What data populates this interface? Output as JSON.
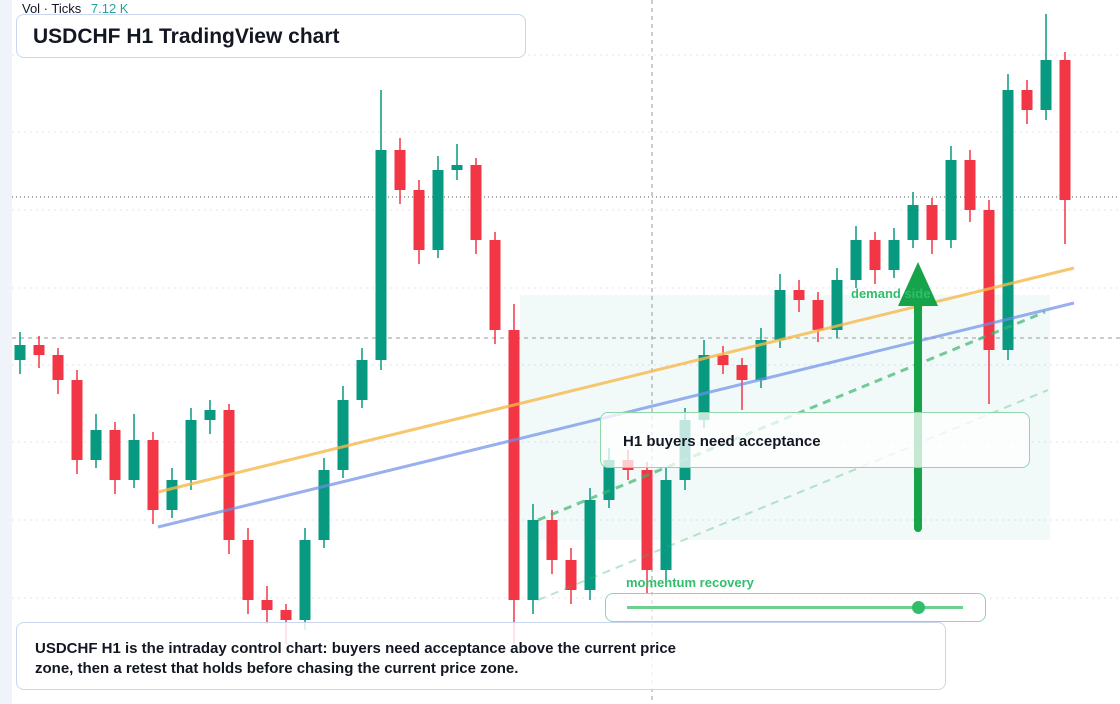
{
  "header": {
    "vol_label": "Vol · Ticks",
    "vol_value": "7.12 K"
  },
  "chart_data": {
    "type": "candlestick",
    "title": "USDCHF H1 TradingView chart",
    "up_color": "#089981",
    "down_color": "#f23645",
    "ylim": [
      0,
      704
    ],
    "open": [
      344,
      359,
      349,
      324,
      244,
      274,
      224,
      264,
      194,
      224,
      284,
      294,
      164,
      104,
      94,
      84,
      164,
      234,
      304,
      344,
      554,
      514,
      454,
      534,
      539,
      464,
      374,
      104,
      184,
      144,
      114,
      204,
      244,
      234,
      134,
      224,
      284,
      349,
      339,
      324,
      364,
      414,
      404,
      374,
      424,
      464,
      434,
      464,
      499,
      464,
      544,
      494,
      354,
      614,
      594,
      644
    ],
    "high": [
      372,
      368,
      356,
      334,
      290,
      282,
      290,
      272,
      236,
      296,
      304,
      300,
      176,
      118,
      100,
      176,
      246,
      318,
      356,
      614,
      566,
      524,
      548,
      560,
      546,
      472,
      400,
      200,
      194,
      156,
      216,
      256,
      254,
      242,
      236,
      296,
      364,
      358,
      346,
      376,
      430,
      424,
      412,
      436,
      478,
      472,
      476,
      512,
      506,
      558,
      554,
      504,
      630,
      624,
      690,
      652
    ],
    "low": [
      330,
      336,
      310,
      230,
      236,
      210,
      216,
      180,
      186,
      214,
      270,
      150,
      90,
      80,
      60,
      74,
      156,
      226,
      296,
      334,
      500,
      440,
      446,
      524,
      450,
      360,
      60,
      90,
      130,
      100,
      104,
      196,
      224,
      110,
      124,
      214,
      276,
      330,
      294,
      316,
      356,
      392,
      362,
      366,
      416,
      420,
      426,
      456,
      450,
      456,
      482,
      300,
      344,
      580,
      584,
      460
    ],
    "close": [
      359,
      349,
      324,
      244,
      274,
      224,
      264,
      194,
      224,
      284,
      294,
      164,
      104,
      94,
      84,
      164,
      234,
      304,
      344,
      554,
      514,
      454,
      534,
      539,
      464,
      374,
      104,
      184,
      144,
      114,
      204,
      244,
      234,
      134,
      224,
      284,
      349,
      339,
      324,
      364,
      414,
      404,
      374,
      424,
      464,
      434,
      464,
      499,
      464,
      544,
      494,
      354,
      614,
      594,
      644,
      504
    ],
    "annotations": {
      "zone": "demand side",
      "callout": "H1 buyers need acceptance",
      "momentum": "momentum recovery"
    },
    "caption": "USDCHF H1 is the intraday control chart: buyers need acceptance above the current price zone, then a retest that holds before chasing the current price zone."
  }
}
